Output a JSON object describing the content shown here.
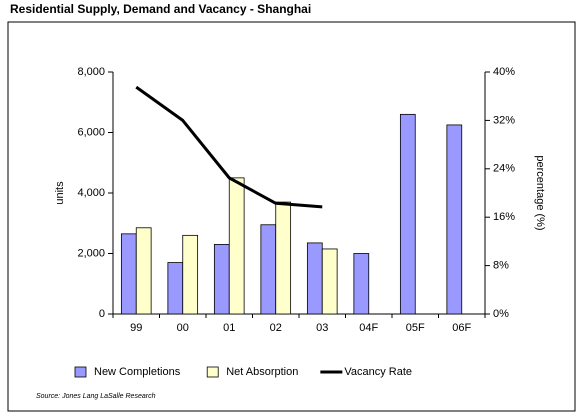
{
  "chart_data": {
    "type": "bar",
    "title": "Residential Supply, Demand and Vacancy - Shanghai",
    "ylabel": "units",
    "y2label": "percentage (%)",
    "source": "Source: Jones Lang LaSalle Research",
    "categories": [
      "99",
      "00",
      "01",
      "02",
      "03",
      "04F",
      "05F",
      "06F"
    ],
    "series": [
      {
        "name": "New Completions",
        "color": "#9999ff",
        "values": [
          2650,
          1700,
          2300,
          2950,
          2350,
          2000,
          6600,
          6250
        ]
      },
      {
        "name": "Net Absorption",
        "color": "#ffffcc",
        "values": [
          2850,
          2600,
          4500,
          3700,
          2150,
          null,
          null,
          null
        ]
      },
      {
        "name": "Vacancy Rate",
        "color": "#000000",
        "type": "line",
        "axis": "y2",
        "values": [
          37.5,
          32,
          22.5,
          18.3,
          17.7,
          null,
          null,
          null
        ]
      }
    ],
    "ylim": [
      0,
      8000
    ],
    "yticks": [
      0,
      {
        "value": 2000,
        "label": "2,000"
      },
      {
        "value": 4000,
        "label": "4,000"
      },
      {
        "value": 6000,
        "label": "6,000"
      },
      {
        "value": 8000,
        "label": "8,000"
      }
    ],
    "y2lim": [
      0,
      40
    ],
    "y2ticks": [
      {
        "value": 0,
        "label": "0%"
      },
      {
        "value": 8,
        "label": "8%"
      },
      {
        "value": 16,
        "label": "16%"
      },
      {
        "value": 24,
        "label": "24%"
      },
      {
        "value": 32,
        "label": "32%"
      },
      {
        "value": 40,
        "label": "40%"
      }
    ],
    "grid": false,
    "legend": "bottom"
  }
}
